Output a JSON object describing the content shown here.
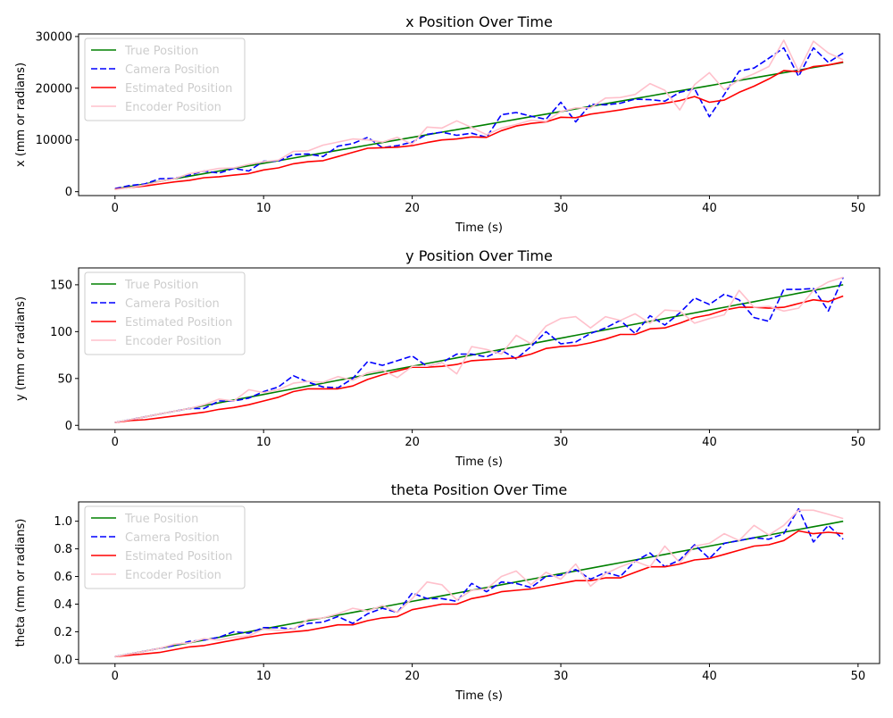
{
  "chart_data": [
    {
      "type": "line",
      "title": "x Position Over Time",
      "xlabel": "Time (s)",
      "ylabel": "x (mm or radians)",
      "xlim": [
        -2.45,
        51.45
      ],
      "ylim": [
        -750,
        30500
      ],
      "xticks": [
        0,
        10,
        20,
        30,
        40,
        50
      ],
      "yticks": [
        0,
        10000,
        20000,
        30000
      ],
      "grid": false,
      "legend_position": "top-left",
      "x": [
        0,
        1,
        2,
        3,
        4,
        5,
        6,
        7,
        8,
        9,
        10,
        11,
        12,
        13,
        14,
        15,
        16,
        17,
        18,
        19,
        20,
        21,
        22,
        23,
        24,
        25,
        26,
        27,
        28,
        29,
        30,
        31,
        32,
        33,
        34,
        35,
        36,
        37,
        38,
        39,
        40,
        41,
        42,
        43,
        44,
        45,
        46,
        47,
        48,
        49
      ],
      "series": [
        {
          "name": "True Position",
          "color": "#008000",
          "dash": "solid",
          "values": [
            500,
            1000,
            1500,
            2000,
            2500,
            3000,
            3500,
            4000,
            4500,
            5000,
            5500,
            6000,
            6500,
            7000,
            7500,
            8000,
            8500,
            9000,
            9500,
            10000,
            10500,
            11000,
            11500,
            12000,
            12500,
            13000,
            13500,
            14000,
            14500,
            15000,
            15500,
            16000,
            16500,
            17000,
            17500,
            18000,
            18500,
            19000,
            19500,
            20000,
            20500,
            21000,
            21500,
            22000,
            22500,
            23000,
            23500,
            24000,
            24500,
            25000
          ]
        },
        {
          "name": "Camera Position",
          "color": "#0000ff",
          "dash": "dashed",
          "values": [
            600,
            1200,
            1500,
            2500,
            2600,
            3200,
            4000,
            3600,
            4500,
            4000,
            5900,
            5900,
            7200,
            7300,
            6800,
            8800,
            9300,
            10500,
            8500,
            8900,
            9600,
            11100,
            11500,
            10900,
            11300,
            10500,
            14900,
            15300,
            14600,
            14000,
            17300,
            13500,
            16900,
            16800,
            17100,
            17900,
            17800,
            17500,
            19200,
            19900,
            14500,
            18800,
            23300,
            23900,
            25800,
            27800,
            22300,
            27800,
            25000,
            26800
          ]
        },
        {
          "name": "Estimated Position",
          "color": "#ff0000",
          "dash": "solid",
          "values": [
            500,
            800,
            1100,
            1500,
            1900,
            2200,
            2700,
            2900,
            3200,
            3500,
            4200,
            4600,
            5400,
            5800,
            6000,
            6800,
            7600,
            8400,
            8500,
            8600,
            8900,
            9500,
            10000,
            10200,
            10600,
            10500,
            11800,
            12700,
            13200,
            13500,
            14400,
            14300,
            15000,
            15400,
            15800,
            16300,
            16700,
            17100,
            17600,
            18400,
            17300,
            17700,
            19200,
            20400,
            21800,
            23400,
            23200,
            24200,
            24500,
            25100
          ]
        },
        {
          "name": "Encoder Position",
          "color": "#ffc0cb",
          "dash": "solid",
          "values": [
            400,
            800,
            1300,
            2000,
            2500,
            3500,
            4000,
            4500,
            4600,
            5300,
            5800,
            6100,
            7800,
            7900,
            9000,
            9600,
            10200,
            10000,
            9600,
            10500,
            9200,
            12500,
            12300,
            13700,
            12400,
            11000,
            12300,
            13000,
            13800,
            13600,
            15500,
            16200,
            16200,
            18100,
            18200,
            18800,
            20900,
            19600,
            15800,
            20700,
            23000,
            19700,
            21600,
            22800,
            24200,
            29300,
            23300,
            29100,
            26800,
            25500
          ]
        }
      ]
    },
    {
      "type": "line",
      "title": "y Position Over Time",
      "xlabel": "Time (s)",
      "ylabel": "y (mm or radians)",
      "xlim": [
        -2.45,
        51.45
      ],
      "ylim": [
        -4.5,
        168
      ],
      "xticks": [
        0,
        10,
        20,
        30,
        40,
        50
      ],
      "yticks": [
        0,
        50,
        100,
        150
      ],
      "grid": false,
      "legend_position": "top-left",
      "x": [
        0,
        1,
        2,
        3,
        4,
        5,
        6,
        7,
        8,
        9,
        10,
        11,
        12,
        13,
        14,
        15,
        16,
        17,
        18,
        19,
        20,
        21,
        22,
        23,
        24,
        25,
        26,
        27,
        28,
        29,
        30,
        31,
        32,
        33,
        34,
        35,
        36,
        37,
        38,
        39,
        40,
        41,
        42,
        43,
        44,
        45,
        46,
        47,
        48,
        49
      ],
      "series": [
        {
          "name": "True Position",
          "color": "#008000",
          "dash": "solid",
          "values": [
            3,
            6,
            9,
            12,
            15,
            18,
            21,
            24,
            27,
            30,
            33,
            36,
            39,
            42,
            45,
            48,
            51,
            54,
            57,
            60,
            63,
            66,
            69,
            72,
            75,
            78,
            81,
            84,
            87,
            90,
            93,
            96,
            99,
            102,
            105,
            108,
            111,
            114,
            117,
            120,
            123,
            126,
            129,
            132,
            135,
            138,
            141,
            144,
            147,
            150
          ]
        },
        {
          "name": "Camera Position",
          "color": "#0000ff",
          "dash": "dashed",
          "values": [
            3,
            6,
            9,
            12,
            15,
            18,
            18,
            26,
            26,
            29,
            36,
            41,
            53,
            46,
            41,
            40,
            50,
            68,
            64,
            69,
            74,
            63,
            67,
            76,
            76,
            73,
            80,
            71,
            84,
            100,
            87,
            89,
            98,
            104,
            112,
            98,
            117,
            107,
            120,
            136,
            129,
            140,
            134,
            115,
            111,
            145,
            145,
            146,
            122,
            158
          ]
        },
        {
          "name": "Estimated Position",
          "color": "#ff0000",
          "dash": "solid",
          "values": [
            3,
            5,
            6,
            8,
            10,
            12,
            14,
            17,
            19,
            22,
            26,
            30,
            36,
            39,
            39,
            39,
            42,
            49,
            54,
            58,
            62,
            62,
            63,
            65,
            69,
            70,
            71,
            72,
            76,
            82,
            84,
            85,
            88,
            92,
            97,
            97,
            103,
            104,
            109,
            115,
            118,
            123,
            126,
            126,
            125,
            126,
            130,
            134,
            132,
            138
          ]
        },
        {
          "name": "Encoder Position",
          "color": "#ffc0cb",
          "dash": "solid",
          "values": [
            3,
            6,
            9,
            12,
            15,
            18,
            22,
            28,
            26,
            38,
            35,
            38,
            45,
            47,
            46,
            52,
            48,
            56,
            59,
            51,
            63,
            63,
            67,
            55,
            84,
            81,
            76,
            96,
            87,
            106,
            114,
            116,
            104,
            116,
            112,
            119,
            109,
            123,
            122,
            109,
            114,
            118,
            144,
            126,
            127,
            122,
            125,
            144,
            153,
            158
          ]
        }
      ]
    },
    {
      "type": "line",
      "title": "theta Position Over Time",
      "xlabel": "Time (s)",
      "ylabel": "theta (mm or radians)",
      "xlim": [
        -2.45,
        51.45
      ],
      "ylim": [
        -0.03,
        1.14
      ],
      "xticks": [
        0,
        10,
        20,
        30,
        40,
        50
      ],
      "yticks": [
        "0.0",
        "0.2",
        "0.4",
        "0.6",
        "0.8",
        "1.0"
      ],
      "grid": false,
      "legend_position": "top-left",
      "x": [
        0,
        1,
        2,
        3,
        4,
        5,
        6,
        7,
        8,
        9,
        10,
        11,
        12,
        13,
        14,
        15,
        16,
        17,
        18,
        19,
        20,
        21,
        22,
        23,
        24,
        25,
        26,
        27,
        28,
        29,
        30,
        31,
        32,
        33,
        34,
        35,
        36,
        37,
        38,
        39,
        40,
        41,
        42,
        43,
        44,
        45,
        46,
        47,
        48,
        49
      ],
      "series": [
        {
          "name": "True Position",
          "color": "#008000",
          "dash": "solid",
          "values": [
            0.02,
            0.04,
            0.06,
            0.08,
            0.1,
            0.12,
            0.14,
            0.16,
            0.18,
            0.2,
            0.22,
            0.24,
            0.26,
            0.28,
            0.3,
            0.32,
            0.34,
            0.36,
            0.38,
            0.4,
            0.42,
            0.44,
            0.46,
            0.48,
            0.5,
            0.52,
            0.54,
            0.56,
            0.58,
            0.6,
            0.62,
            0.64,
            0.66,
            0.68,
            0.7,
            0.72,
            0.74,
            0.76,
            0.78,
            0.8,
            0.82,
            0.84,
            0.86,
            0.88,
            0.9,
            0.92,
            0.94,
            0.96,
            0.98,
            1.0
          ]
        },
        {
          "name": "Camera Position",
          "color": "#0000ff",
          "dash": "dashed",
          "values": [
            0.02,
            0.04,
            0.06,
            0.08,
            0.1,
            0.13,
            0.14,
            0.16,
            0.2,
            0.19,
            0.23,
            0.23,
            0.22,
            0.26,
            0.27,
            0.31,
            0.26,
            0.33,
            0.37,
            0.34,
            0.48,
            0.44,
            0.44,
            0.42,
            0.55,
            0.49,
            0.56,
            0.55,
            0.52,
            0.6,
            0.61,
            0.65,
            0.58,
            0.63,
            0.6,
            0.71,
            0.77,
            0.67,
            0.72,
            0.83,
            0.73,
            0.84,
            0.86,
            0.88,
            0.87,
            0.91,
            1.09,
            0.85,
            0.97,
            0.87
          ]
        },
        {
          "name": "Estimated Position",
          "color": "#ff0000",
          "dash": "solid",
          "values": [
            0.02,
            0.03,
            0.04,
            0.05,
            0.07,
            0.09,
            0.1,
            0.12,
            0.14,
            0.16,
            0.18,
            0.19,
            0.2,
            0.21,
            0.23,
            0.25,
            0.25,
            0.28,
            0.3,
            0.31,
            0.36,
            0.38,
            0.4,
            0.4,
            0.44,
            0.46,
            0.49,
            0.5,
            0.51,
            0.53,
            0.55,
            0.57,
            0.57,
            0.59,
            0.59,
            0.63,
            0.67,
            0.67,
            0.69,
            0.72,
            0.73,
            0.76,
            0.79,
            0.82,
            0.83,
            0.86,
            0.93,
            0.91,
            0.92,
            0.91
          ]
        },
        {
          "name": "Encoder Position",
          "color": "#ffc0cb",
          "dash": "solid",
          "values": [
            0.02,
            0.04,
            0.06,
            0.08,
            0.11,
            0.12,
            0.15,
            0.14,
            0.16,
            0.17,
            0.22,
            0.21,
            0.22,
            0.29,
            0.3,
            0.33,
            0.37,
            0.35,
            0.39,
            0.34,
            0.44,
            0.56,
            0.54,
            0.43,
            0.5,
            0.51,
            0.6,
            0.64,
            0.54,
            0.63,
            0.58,
            0.69,
            0.53,
            0.62,
            0.67,
            0.71,
            0.67,
            0.82,
            0.7,
            0.82,
            0.84,
            0.91,
            0.86,
            0.97,
            0.9,
            0.97,
            1.08,
            1.08,
            1.05,
            1.02
          ]
        }
      ]
    }
  ]
}
